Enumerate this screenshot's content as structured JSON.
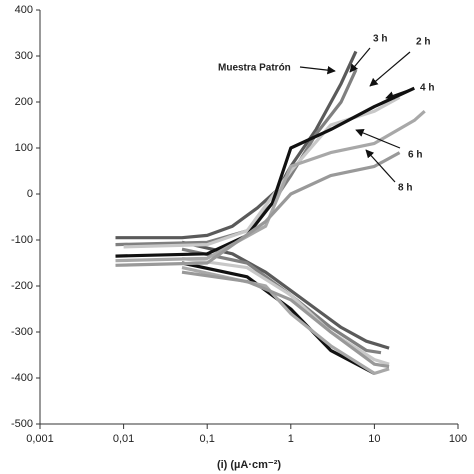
{
  "chart_data": {
    "type": "line",
    "x_log": true,
    "x_label": "(i) (µA·cm⁻²)",
    "xlim": [
      0.001,
      100
    ],
    "xticks": [
      {
        "value": 0.001,
        "label": "0,001"
      },
      {
        "value": 0.01,
        "label": "0,01"
      },
      {
        "value": 0.1,
        "label": "0,1"
      },
      1,
      10,
      100
    ],
    "ylim": [
      -500,
      400
    ],
    "yticks": [
      -500,
      -400,
      -300,
      -200,
      -100,
      0,
      100,
      200,
      300,
      400
    ],
    "annotations": [
      "Muestra Patrón",
      "3 h",
      "2 h",
      "4 h",
      "6 h",
      "8 h"
    ],
    "series": [
      {
        "name": "Muestra Patrón",
        "color": "#5a5a5a",
        "x": [
          0.008,
          0.05,
          0.1,
          0.2,
          0.4,
          0.7,
          1,
          2,
          4,
          6,
          null,
          0.05,
          0.2,
          0.5,
          1,
          2,
          4,
          8,
          15
        ],
        "values": [
          -95,
          -95,
          -90,
          -70,
          -30,
          10,
          60,
          140,
          240,
          310,
          null,
          -105,
          -130,
          -170,
          -210,
          -250,
          -290,
          -320,
          -335
        ]
      },
      {
        "name": "3 h",
        "color": "#808080",
        "x": [
          0.008,
          0.1,
          0.3,
          0.6,
          1,
          2,
          4,
          6,
          null,
          0.05,
          0.3,
          1,
          3,
          8,
          12
        ],
        "values": [
          -110,
          -105,
          -80,
          -20,
          40,
          130,
          200,
          270,
          null,
          -120,
          -150,
          -220,
          -290,
          -340,
          -345
        ]
      },
      {
        "name": "2 h",
        "color": "#c8c8c8",
        "x": [
          0.01,
          0.1,
          0.3,
          1,
          3,
          10,
          20,
          null,
          0.05,
          0.3,
          1,
          3,
          10,
          15
        ],
        "values": [
          -115,
          -110,
          -80,
          50,
          150,
          180,
          210,
          null,
          -140,
          -160,
          -220,
          -300,
          -360,
          -370
        ]
      },
      {
        "name": "4 h",
        "color": "#111111",
        "x": [
          0.008,
          0.1,
          0.3,
          0.6,
          1,
          3,
          10,
          30,
          null,
          0.05,
          0.3,
          1,
          3,
          10
        ],
        "values": [
          -135,
          -130,
          -90,
          -20,
          100,
          140,
          190,
          230,
          null,
          -150,
          -180,
          -250,
          -340,
          -390
        ]
      },
      {
        "name": "6 h",
        "color": "#a8a8a8",
        "x": [
          0.008,
          0.1,
          0.5,
          1,
          3,
          10,
          30,
          40,
          null,
          0.05,
          0.5,
          1,
          3,
          10,
          15
        ],
        "values": [
          -145,
          -140,
          -70,
          60,
          90,
          110,
          160,
          180,
          null,
          -160,
          -200,
          -260,
          -330,
          -390,
          -380
        ]
      },
      {
        "name": "8 h",
        "color": "#999999",
        "x": [
          0.008,
          0.1,
          0.5,
          1,
          3,
          10,
          20,
          null,
          0.05,
          0.3,
          1,
          3,
          10,
          15
        ],
        "values": [
          -155,
          -150,
          -60,
          0,
          40,
          60,
          90,
          null,
          -170,
          -190,
          -230,
          -300,
          -370,
          -375
        ]
      }
    ]
  }
}
